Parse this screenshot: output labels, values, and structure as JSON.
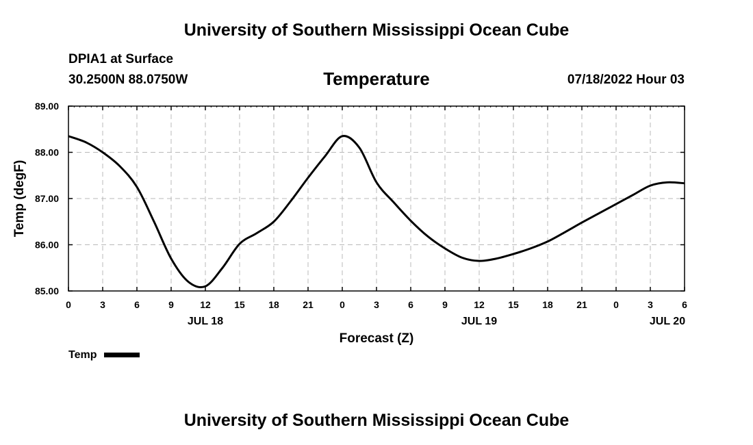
{
  "page": {
    "title_top": "University of Southern Mississippi Ocean Cube",
    "title_bottom": "University of Southern Mississippi Ocean Cube",
    "station": "DPIA1 at Surface",
    "coords": "30.2500N  88.0750W",
    "timestamp": "07/18/2022 Hour 03"
  },
  "legend": {
    "label": "Temp"
  },
  "chart_data": {
    "type": "line",
    "title": "Temperature",
    "xlabel": "Forecast (Z)",
    "ylabel": "Temp (degF)",
    "xlim": [
      0,
      54
    ],
    "ylim": [
      85.0,
      89.0
    ],
    "y_ticks": [
      "85.00",
      "86.00",
      "87.00",
      "88.00",
      "89.00"
    ],
    "y_tick_values": [
      85,
      86,
      87,
      88,
      89
    ],
    "x_tick_values": [
      0,
      3,
      6,
      9,
      12,
      15,
      18,
      21,
      24,
      27,
      30,
      33,
      36,
      39,
      42,
      45,
      48,
      51,
      54
    ],
    "x_tick_labels": [
      "0",
      "3",
      "6",
      "9",
      "12",
      "15",
      "18",
      "21",
      "0",
      "3",
      "6",
      "9",
      "12",
      "15",
      "18",
      "21",
      "0",
      "3",
      "6"
    ],
    "date_labels": [
      {
        "x": 12,
        "label": "JUL 18"
      },
      {
        "x": 36,
        "label": "JUL 19"
      },
      {
        "x": 52.5,
        "label": "JUL 20"
      }
    ],
    "grid": true,
    "series": [
      {
        "name": "Temp",
        "x": [
          0,
          1.5,
          3,
          4.5,
          6,
          7.5,
          9,
          10.5,
          12,
          13.5,
          15,
          16.5,
          18,
          19.5,
          21,
          22.5,
          24,
          25.5,
          27,
          28.5,
          30,
          31.5,
          33,
          34.5,
          36,
          37.5,
          39,
          40.5,
          42,
          43.5,
          45,
          46.5,
          48,
          49.5,
          51,
          52.5,
          54
        ],
        "values": [
          88.35,
          88.22,
          88.0,
          87.7,
          87.25,
          86.5,
          85.7,
          85.2,
          85.1,
          85.5,
          86.02,
          86.25,
          86.5,
          86.95,
          87.45,
          87.92,
          88.35,
          88.1,
          87.35,
          86.92,
          86.52,
          86.18,
          85.92,
          85.72,
          85.65,
          85.7,
          85.8,
          85.92,
          86.07,
          86.27,
          86.48,
          86.68,
          86.88,
          87.08,
          87.28,
          87.35,
          87.33
        ]
      }
    ]
  }
}
